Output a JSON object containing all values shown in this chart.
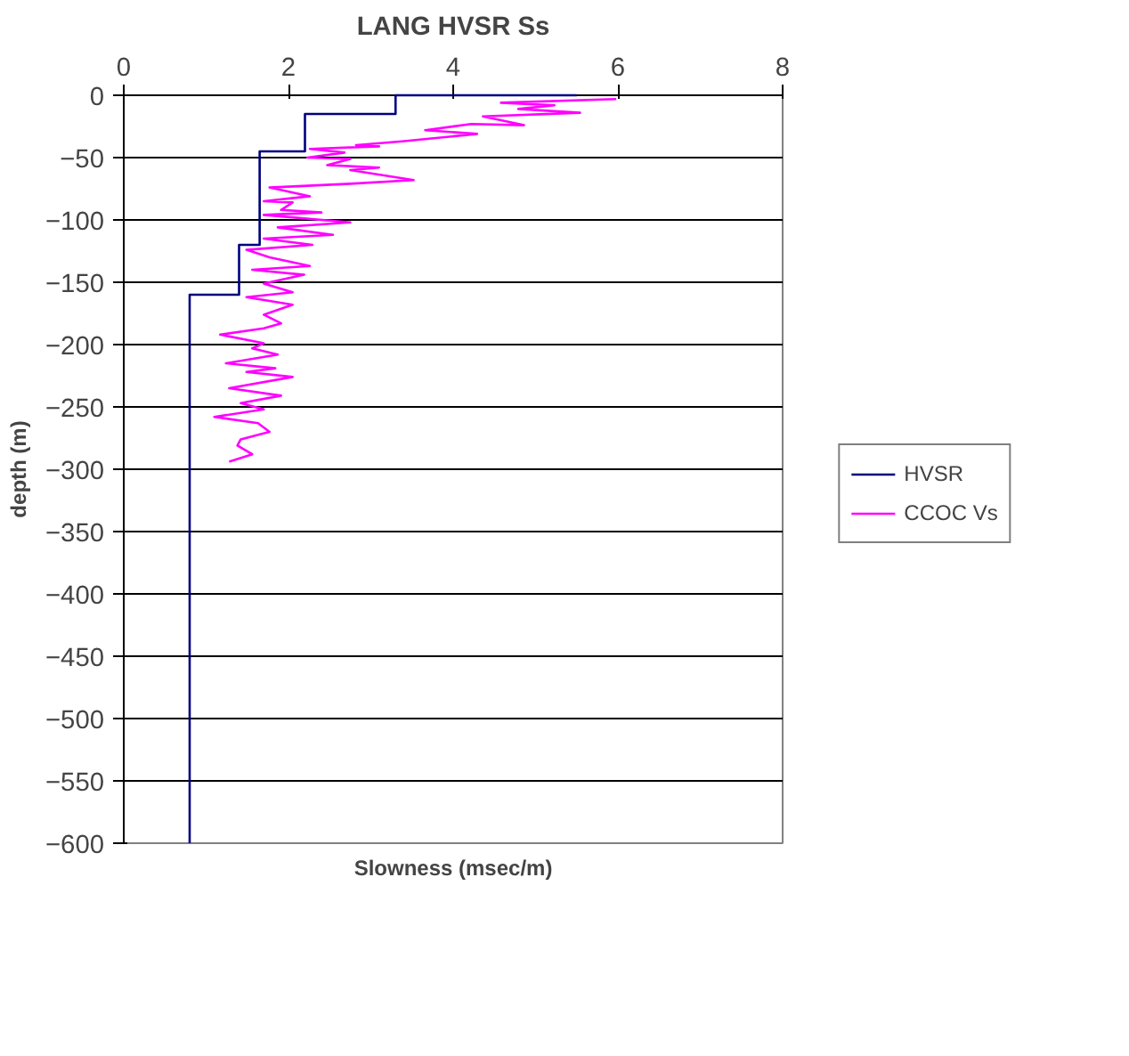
{
  "chart_data": {
    "type": "line",
    "title": "LANG HVSR Ss",
    "xlabel": "Slowness (msec/m)",
    "ylabel": "depth (m)",
    "xlim": [
      0,
      8
    ],
    "xticks": [
      0,
      2,
      4,
      6,
      8
    ],
    "ylim": [
      -600,
      0
    ],
    "yticks": [
      0,
      -50,
      -100,
      -150,
      -200,
      -250,
      -300,
      -350,
      -400,
      -450,
      -500,
      -550,
      -600
    ],
    "grid": "y",
    "legend": "right",
    "marker": "none",
    "line_style": "solid",
    "series": [
      {
        "name": "HVSR",
        "color": "#000080",
        "x": [
          5.5,
          3.3,
          3.3,
          2.2,
          2.2,
          1.65,
          1.65,
          1.4,
          1.4,
          0.8,
          0.8
        ],
        "values": [
          0,
          0,
          -15,
          -15,
          -45,
          -45,
          -120,
          -120,
          -160,
          -160,
          -600
        ]
      },
      {
        "name": "CCOC Vs",
        "color": "#ff00ff",
        "x": [
          5.98,
          4.58,
          5.23,
          4.79,
          5.54,
          4.36,
          4.86,
          4.22,
          3.66,
          4.29,
          3.38,
          2.82,
          3.1,
          2.26,
          2.68,
          2.23,
          2.75,
          2.47,
          3.1,
          2.75,
          3.52,
          2.75,
          1.77,
          2.26,
          1.7,
          2.05,
          1.91,
          2.4,
          1.7,
          2.75,
          1.87,
          2.54,
          1.7,
          2.29,
          1.49,
          1.77,
          2.26,
          1.56,
          2.19,
          1.7,
          2.05,
          1.49,
          2.05,
          1.7,
          1.91,
          1.7,
          1.17,
          1.7,
          1.56,
          1.87,
          1.24,
          1.84,
          1.49,
          2.05,
          1.28,
          1.91,
          1.42,
          1.7,
          1.1,
          1.63,
          1.77,
          1.42,
          1.38,
          1.56,
          1.28
        ],
        "values": [
          -3,
          -6,
          -8,
          -11,
          -14,
          -17,
          -24,
          -23,
          -28,
          -31,
          -37,
          -40,
          -41,
          -43,
          -46,
          -50,
          -51,
          -56,
          -58,
          -60,
          -68,
          -71,
          -74,
          -81,
          -85,
          -86,
          -92,
          -94,
          -96,
          -102,
          -106,
          -112,
          -115,
          -120,
          -124,
          -130,
          -137,
          -140,
          -144,
          -151,
          -158,
          -162,
          -168,
          -176,
          -183,
          -187,
          -192,
          -199,
          -203,
          -208,
          -215,
          -219,
          -222,
          -226,
          -235,
          -241,
          -247,
          -252,
          -258,
          -263,
          -270,
          -276,
          -281,
          -288,
          -294
        ]
      }
    ]
  }
}
